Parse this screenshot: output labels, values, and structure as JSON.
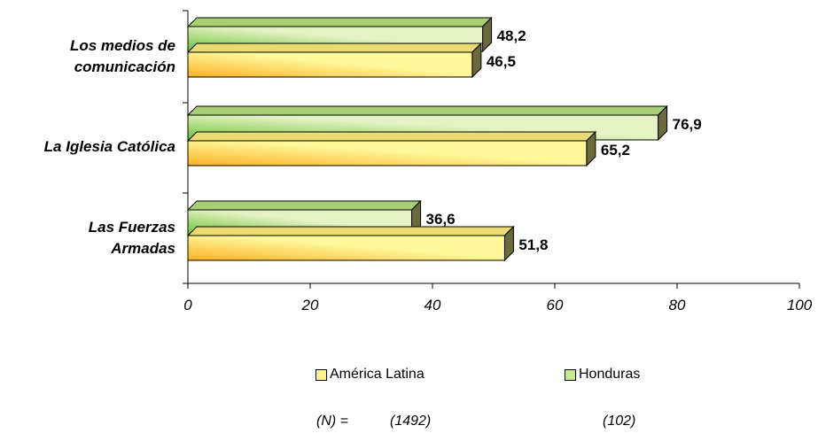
{
  "chart_data": {
    "type": "bar",
    "orientation": "horizontal",
    "categories": [
      "Los medios de comunicación",
      "La Iglesia Católica",
      "Las Fuerzas Armadas"
    ],
    "category_lines": [
      [
        "Los medios de",
        "comunicación"
      ],
      [
        "La Iglesia Católica"
      ],
      [
        "Las Fuerzas",
        "Armadas"
      ]
    ],
    "series": [
      {
        "name": "Honduras",
        "values": [
          48.2,
          76.9,
          36.6
        ],
        "labels": [
          "48,2",
          "76,9",
          "36,6"
        ],
        "color_light": "#e4f2c4",
        "color_dark": "#6cc234",
        "top_color": "#a9cf75",
        "side_color": "#6b6a3c"
      },
      {
        "name": "América Latina",
        "values": [
          46.5,
          65.2,
          51.8
        ],
        "labels": [
          "46,5",
          "65,2",
          "51,8"
        ],
        "color_light": "#fff89a",
        "color_dark": "#fbb024",
        "top_color": "#eadc72",
        "side_color": "#6b6a3c"
      }
    ],
    "xlim": [
      0,
      100
    ],
    "ticks": [
      0,
      20,
      40,
      60,
      80,
      100
    ],
    "tick_labels": [
      "0",
      "20",
      "40",
      "60",
      "80",
      "100"
    ],
    "legend_position": "bottom"
  },
  "legend": {
    "items": [
      {
        "label": "América Latina",
        "color": "#fff48a"
      },
      {
        "label": "Honduras",
        "color": "#c6e88e"
      }
    ]
  },
  "footnote": {
    "n_label": "(N) =",
    "n_values": [
      "(1492)",
      "(102)"
    ]
  }
}
